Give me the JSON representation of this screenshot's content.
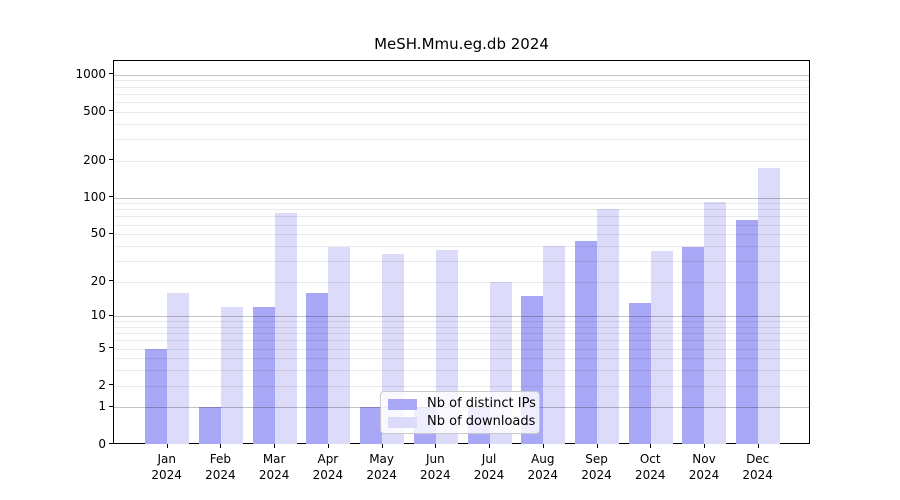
{
  "title": "MeSH.Mmu.eg.db 2024",
  "chart_data": {
    "type": "bar",
    "y_scale": "log1p",
    "grid": "minor log gridlines + darker decade lines at 1,10,100,1000",
    "legend_position": "inside plot, bottom center-right",
    "categories": [
      "Jan",
      "Feb",
      "Mar",
      "Apr",
      "May",
      "Jun",
      "Jul",
      "Aug",
      "Sep",
      "Oct",
      "Nov",
      "Dec"
    ],
    "year_label": "2024",
    "y_ticks": [
      1000,
      500,
      200,
      100,
      50,
      20,
      10,
      5,
      2,
      1,
      0
    ],
    "ylim": [
      0,
      1250
    ],
    "series": [
      {
        "name": "Nb of distinct IPs",
        "color": "#a9a8f7",
        "values": [
          5,
          1,
          12,
          16,
          1,
          1,
          1,
          15,
          44,
          13,
          39,
          66
        ]
      },
      {
        "name": "Nb of downloads",
        "color": "#dcdbfa",
        "values": [
          16,
          12,
          74,
          39,
          34,
          37,
          20,
          40,
          80,
          36,
          92,
          174
        ]
      }
    ]
  }
}
